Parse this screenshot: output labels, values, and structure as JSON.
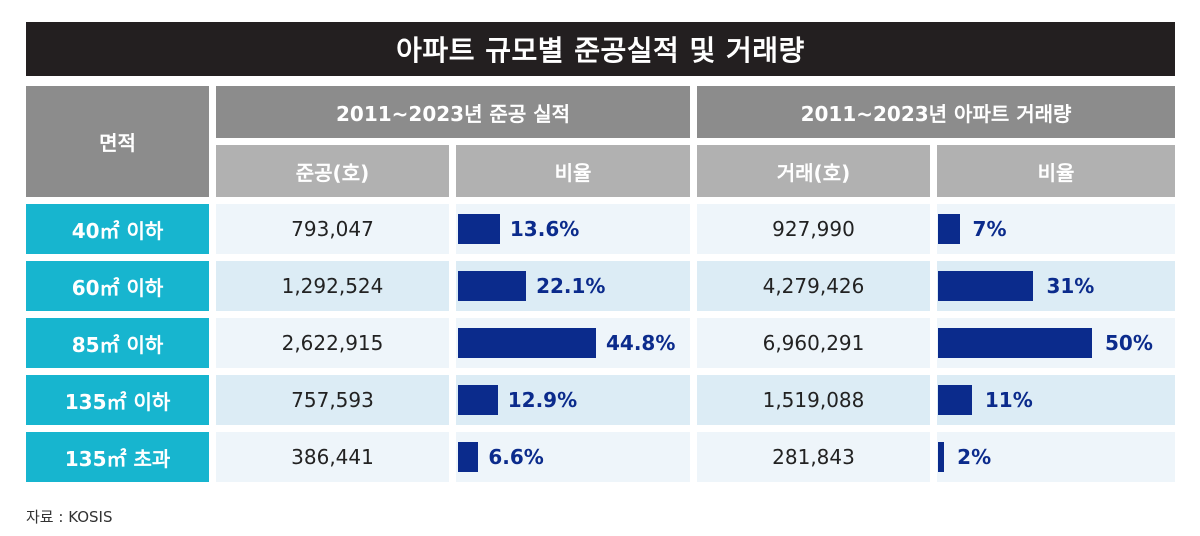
{
  "title": "아파트 규모별 준공실적 및 거래량",
  "header": {
    "area": "면적",
    "group1": "2011~2023년 준공 실적",
    "group2": "2011~2023년 아파트 거래량",
    "col_completion": "준공(호)",
    "col_ratio1": "비율",
    "col_transaction": "거래(호)",
    "col_ratio2": "비율"
  },
  "source": "자료 : KOSIS",
  "chart_data": {
    "type": "table",
    "title": "아파트 규모별 준공실적 및 거래량",
    "categories": [
      "40㎡ 이하",
      "60㎡ 이하",
      "85㎡ 이하",
      "135㎡ 이하",
      "135㎡ 초과"
    ],
    "series": [
      {
        "name": "준공(호)",
        "values": [
          793047,
          1292524,
          2622915,
          757593,
          386441
        ]
      },
      {
        "name": "비율",
        "values": [
          13.6,
          22.1,
          44.8,
          12.9,
          6.6
        ]
      },
      {
        "name": "거래(호)",
        "values": [
          927990,
          4279426,
          6960291,
          1519088,
          281843
        ]
      },
      {
        "name": "비율",
        "values": [
          7,
          31,
          50,
          11,
          2
        ]
      }
    ],
    "rows": [
      {
        "label": "40㎡ 이하",
        "completion": "793,047",
        "completion_ratio": 13.6,
        "completion_ratio_label": "13.6%",
        "transaction": "927,990",
        "transaction_ratio": 7,
        "transaction_ratio_label": "7%"
      },
      {
        "label": "60㎡ 이하",
        "completion": "1,292,524",
        "completion_ratio": 22.1,
        "completion_ratio_label": "22.1%",
        "transaction": "4,279,426",
        "transaction_ratio": 31,
        "transaction_ratio_label": "31%"
      },
      {
        "label": "85㎡ 이하",
        "completion": "2,622,915",
        "completion_ratio": 44.8,
        "completion_ratio_label": "44.8%",
        "transaction": "6,960,291",
        "transaction_ratio": 50,
        "transaction_ratio_label": "50%"
      },
      {
        "label": "135㎡ 이하",
        "completion": "757,593",
        "completion_ratio": 12.9,
        "completion_ratio_label": "12.9%",
        "transaction": "1,519,088",
        "transaction_ratio": 11,
        "transaction_ratio_label": "11%"
      },
      {
        "label": "135㎡ 초과",
        "completion": "386,441",
        "completion_ratio": 6.6,
        "completion_ratio_label": "6.6%",
        "transaction": "281,843",
        "transaction_ratio": 2,
        "transaction_ratio_label": "2%"
      }
    ],
    "colors": {
      "bar": "#0b2b8c",
      "row_label": "#17b5cf",
      "header_dark": "#8c8c8c",
      "header_light": "#b1b1b1"
    }
  }
}
